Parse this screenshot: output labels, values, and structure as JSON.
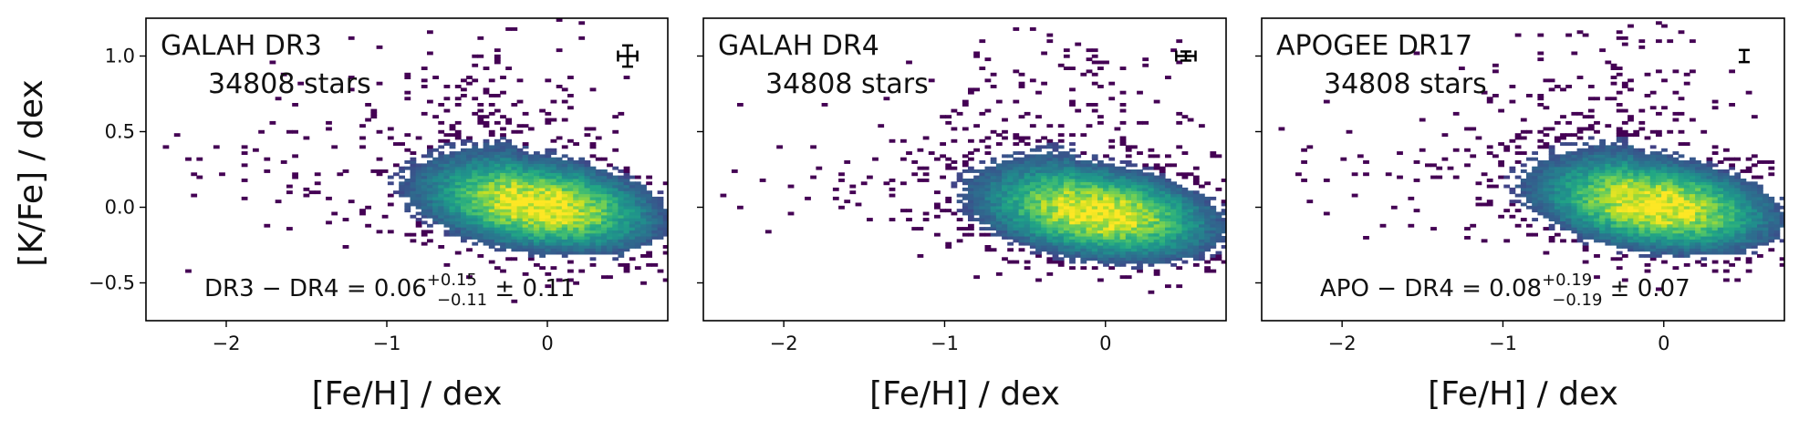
{
  "chart_data": [
    {
      "type": "heatmap",
      "title": "GALAH DR3",
      "subtitle": "34808 stars",
      "xlabel": "[Fe/H] / dex",
      "ylabel": "[K/Fe] / dex",
      "xlim": [
        -2.5,
        0.75
      ],
      "ylim": [
        -0.75,
        1.25
      ],
      "xticks": [
        -2,
        -1,
        0
      ],
      "xtick_labels": [
        "−2",
        "−1",
        "0"
      ],
      "yticks": [
        -0.5,
        0.0,
        0.5,
        1.0
      ],
      "ytick_labels": [
        "−0.5",
        "0.0",
        "0.5",
        "1.0"
      ],
      "stat": {
        "prefix": "DR3 − DR4 = 0.06",
        "sup": "+0.15",
        "sub": "−0.11",
        "suffix": " ± 0.11"
      },
      "errorbar": {
        "x": 0.5,
        "y": 1.0,
        "xerr": 0.06,
        "yerr": 0.07
      },
      "density_peak": {
        "x": -0.05,
        "y": 0.0
      },
      "grid": false,
      "colormap": "viridis"
    },
    {
      "type": "heatmap",
      "title": "GALAH DR4",
      "subtitle": "34808 stars",
      "xlabel": "[Fe/H] / dex",
      "ylabel": "",
      "xlim": [
        -2.5,
        0.75
      ],
      "ylim": [
        -0.75,
        1.25
      ],
      "xticks": [
        -2,
        -1,
        0
      ],
      "xtick_labels": [
        "−2",
        "−1",
        "0"
      ],
      "yticks": [
        -0.5,
        0.0,
        0.5,
        1.0
      ],
      "ytick_labels": [],
      "stat": null,
      "errorbar": {
        "x": 0.5,
        "y": 1.0,
        "xerr": 0.06,
        "yerr": 0.03
      },
      "density_peak": {
        "x": -0.05,
        "y": -0.05
      },
      "grid": false,
      "colormap": "viridis"
    },
    {
      "type": "heatmap",
      "title": "APOGEE DR17",
      "subtitle": "34808 stars",
      "xlabel": "[Fe/H] / dex",
      "ylabel": "",
      "xlim": [
        -2.5,
        0.75
      ],
      "ylim": [
        -0.75,
        1.25
      ],
      "xticks": [
        -2,
        -1,
        0
      ],
      "xtick_labels": [
        "−2",
        "−1",
        "0"
      ],
      "yticks": [
        -0.5,
        0.0,
        0.5,
        1.0
      ],
      "ytick_labels": [],
      "stat": {
        "prefix": "APO − DR4 = 0.08",
        "sup": "+0.19",
        "sub": "−0.19",
        "suffix": " ± 0.07"
      },
      "errorbar": {
        "x": 0.5,
        "y": 1.0,
        "xerr": 0.0,
        "yerr": 0.04
      },
      "density_peak": {
        "x": -0.05,
        "y": 0.0
      },
      "grid": false,
      "colormap": "viridis"
    }
  ]
}
